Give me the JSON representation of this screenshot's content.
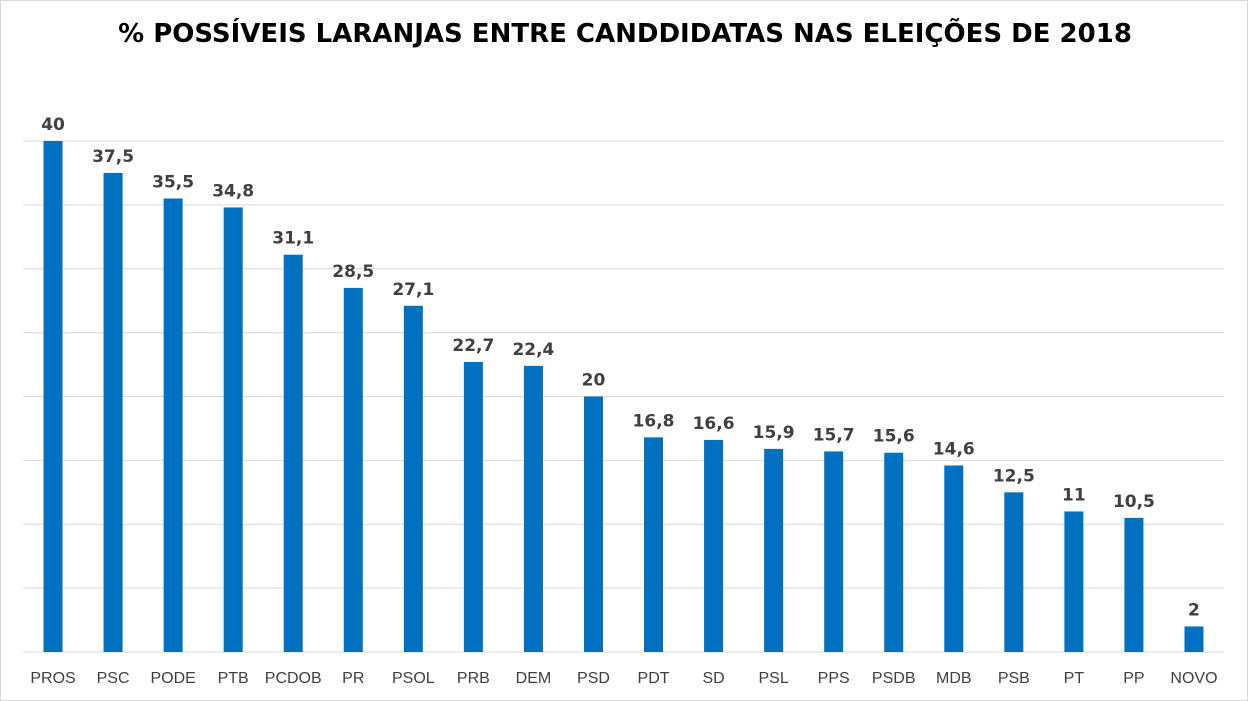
{
  "chart_data": {
    "type": "bar",
    "title": "% POSSÍVEIS LARANJAS ENTRE CANDDIDATAS NAS ELEIÇÕES DE 2018",
    "xlabel": "",
    "ylabel": "",
    "ylim": [
      0,
      40
    ],
    "grid": true,
    "legend": "none",
    "categories": [
      "PROS",
      "PSC",
      "PODE",
      "PTB",
      "PCDOB",
      "PR",
      "PSOL",
      "PRB",
      "DEM",
      "PSD",
      "PDT",
      "SD",
      "PSL",
      "PPS",
      "PSDB",
      "MDB",
      "PSB",
      "PT",
      "PP",
      "NOVO"
    ],
    "values": [
      40,
      37.5,
      35.5,
      34.8,
      31.1,
      28.5,
      27.1,
      22.7,
      22.4,
      20,
      16.8,
      16.6,
      15.9,
      15.7,
      15.6,
      14.6,
      12.5,
      11,
      10.5,
      2
    ],
    "value_labels": [
      "40",
      "37,5",
      "35,5",
      "34,8",
      "31,1",
      "28,5",
      "27,1",
      "22,7",
      "22,4",
      "20",
      "16,8",
      "16,6",
      "15,9",
      "15,7",
      "15,6",
      "14,6",
      "12,5",
      "11",
      "10,5",
      "2"
    ],
    "bar_color": "#0070c0",
    "grid_color": "#d9d9d9"
  }
}
